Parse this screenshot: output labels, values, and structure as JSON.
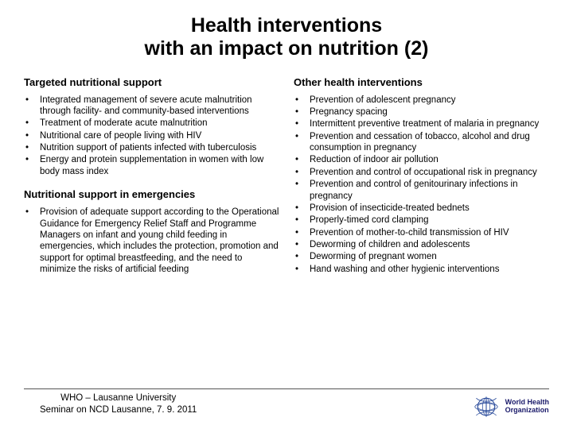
{
  "title_line1": "Health interventions",
  "title_line2": "with an impact on nutrition (2)",
  "left": {
    "head1": "Targeted nutritional support",
    "items1": [
      "Integrated management of severe acute malnutrition through facility- and community-based interventions",
      "Treatment of moderate acute malnutrition",
      "Nutritional care of people living with HIV",
      "Nutrition support of patients infected with tuberculosis",
      "Energy and protein supplementation in women with low body mass index"
    ],
    "head2": "Nutritional support in emergencies",
    "items2": [
      "Provision of adequate support according to the Operational Guidance for Emergency Relief Staff and Programme Managers on infant and young child feeding in emergencies, which includes the protection, promotion and support for optimal breastfeeding, and the need to minimize the risks of artificial feeding"
    ]
  },
  "right": {
    "head1": "Other health interventions",
    "items1": [
      "Prevention of adolescent pregnancy",
      "Pregnancy spacing",
      "Intermittent preventive treatment of malaria in pregnancy",
      "Prevention and cessation of tobacco, alcohol and drug consumption in pregnancy",
      "Reduction of indoor air pollution",
      "Prevention and control of occupational risk in pregnancy",
      "Prevention and control of genitourinary infections in pregnancy",
      "Provision of insecticide-treated bednets",
      "Properly-timed cord clamping",
      "Prevention of mother-to-child transmission of HIV",
      "Deworming of children and adolescents",
      "Deworming of pregnant women",
      "Hand washing and other hygienic interventions"
    ]
  },
  "footer": {
    "line1": "WHO – Lausanne University",
    "line2": "Seminar on NCD Lausanne, 7. 9. 2011",
    "org1": "World Health",
    "org2": "Organization"
  },
  "style": {
    "title_fontsize": 25,
    "head_fontsize": 13,
    "body_fontsize": 11.5,
    "text_color": "#000000",
    "background_color": "#ffffff",
    "logo_color": "#2a4b9b"
  }
}
